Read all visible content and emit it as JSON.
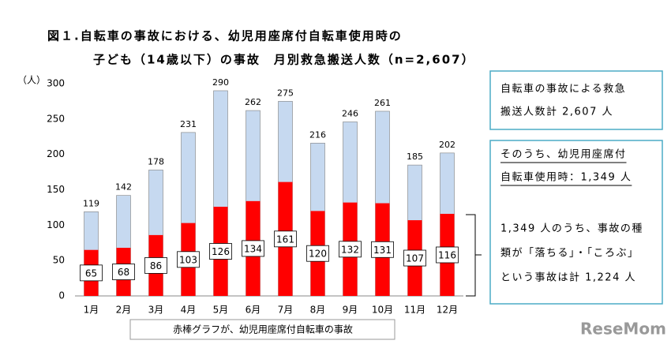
{
  "chart_data": {
    "type": "bar",
    "title": "図１.自転車の事故における、幼児用座席付自転車使用時の",
    "subtitle": "子ども（14歳以下）の事故　月別救急搬送人数（n=2,607）",
    "y_label": "（人）",
    "categories": [
      "1月",
      "2月",
      "3月",
      "4月",
      "5月",
      "6月",
      "7月",
      "8月",
      "9月",
      "10月",
      "11月",
      "12月"
    ],
    "series": [
      {
        "color": "#c6d9f0",
        "values": [
          119,
          142,
          178,
          231,
          290,
          262,
          275,
          216,
          246,
          261,
          185,
          202
        ]
      },
      {
        "name": "赤棒グラフが、幼児用座席付自転車の事故",
        "color": "#ff0000",
        "values": [
          65,
          68,
          86,
          103,
          126,
          134,
          161,
          120,
          132,
          131,
          107,
          116
        ]
      }
    ],
    "ylim": [
      0,
      300
    ],
    "yticks": [
      0,
      50,
      100,
      150,
      200,
      250,
      300
    ],
    "grid": false,
    "annotations": {
      "summary": [
        "自転車の事故による救急",
        "搬送人数計 2,607 人"
      ],
      "detail_heading": [
        "そのうち、幼児用座席付",
        "自転車使用時：1,349 人"
      ],
      "detail_body": [
        "1,349 人のうち、事故の種",
        "類が「落ちる」・「ころぶ」",
        "という事故は計 1,224 人"
      ]
    },
    "watermark": "ReseMom"
  }
}
